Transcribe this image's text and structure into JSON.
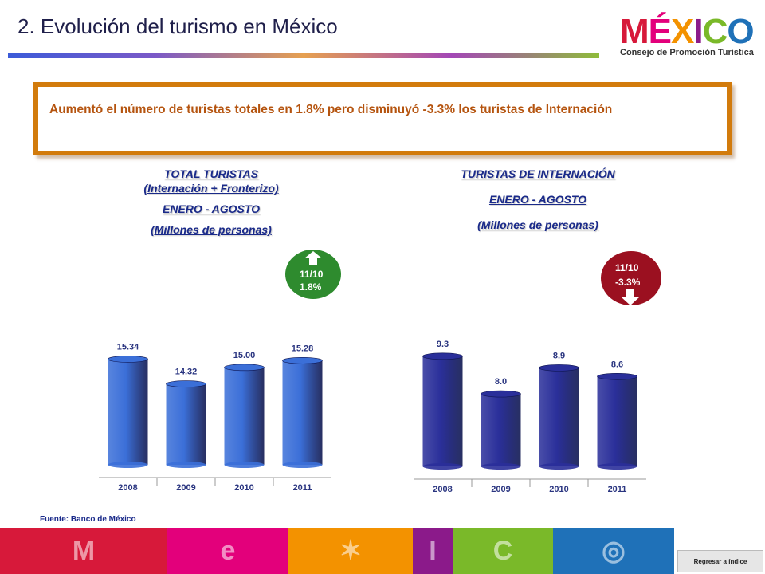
{
  "header": {
    "title": "2. Evolución del turismo en México",
    "logo_word": [
      "M",
      "É",
      "X",
      "I",
      "C",
      "O"
    ],
    "logo_colors": [
      "#d7193a",
      "#e3007b",
      "#f39200",
      "#8b1a8a",
      "#7ab929",
      "#1f71b8"
    ],
    "logo_subtitle": "Consejo de Promoción Turística",
    "rule_colors": [
      "#3b5bd9",
      "#7b59c7",
      "#e6a050",
      "#a347b6",
      "#8fbc3a"
    ]
  },
  "headline": "Aumentó el número de turistas totales en  1.8% pero disminuyó  -3.3% los turistas de Internación",
  "chart_data": [
    {
      "type": "bar",
      "title_lines": [
        "TOTAL TURISTAS",
        "(Internación + Fronterizo)",
        "ENERO - AGOSTO",
        "(Millones de personas)"
      ],
      "categories": [
        "2008",
        "2009",
        "2010",
        "2011"
      ],
      "values": [
        15.34,
        14.32,
        15.0,
        15.28
      ],
      "value_labels": [
        "15.34",
        "14.32",
        "15.00",
        "15.28"
      ],
      "ylim": [
        11,
        16.5
      ],
      "bar_color": "#3b6fd8",
      "badge": {
        "lines": [
          "11/10",
          "1.8%"
        ],
        "direction": "up",
        "color": "#2e8b2e"
      }
    },
    {
      "type": "bar",
      "title_lines": [
        "TURISTAS DE INTERNACIÓN",
        "ENERO - AGOSTO",
        "(Millones de personas)"
      ],
      "categories": [
        "2008",
        "2009",
        "2010",
        "2011"
      ],
      "values": [
        9.3,
        8.0,
        8.9,
        8.6
      ],
      "value_labels": [
        "9.3",
        "8.0",
        "8.9",
        "8.6"
      ],
      "ylim": [
        5.5,
        9.9
      ],
      "bar_color": "#2a2f9a",
      "badge": {
        "lines": [
          "11/10",
          "-3.3%"
        ],
        "direction": "down",
        "color": "#9b1020"
      }
    }
  ],
  "source": "Fuente: Banco de México",
  "footer": {
    "colors": [
      "#d7193a",
      "#e3007b",
      "#f39200",
      "#8b1a8a",
      "#7ab929",
      "#1f71b8"
    ],
    "icons": [
      "mexico-m-icon",
      "mexico-e-icon",
      "mexico-x-icon",
      "mexico-i-icon",
      "mexico-c-icon",
      "mexico-o-icon"
    ],
    "return_label": "Regresar a índice"
  }
}
